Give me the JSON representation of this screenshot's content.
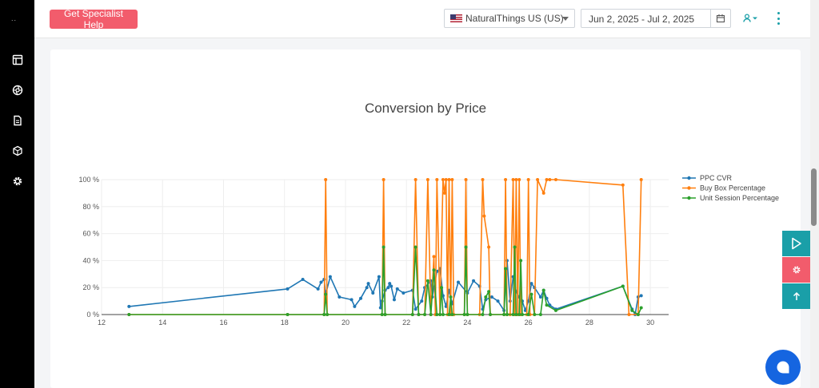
{
  "sidebar": {
    "brand": "..",
    "items": [
      {
        "icon": "layout-icon"
      },
      {
        "icon": "aperture-icon"
      },
      {
        "icon": "document-icon"
      },
      {
        "icon": "box-icon"
      },
      {
        "icon": "gear-icon"
      }
    ]
  },
  "header": {
    "help_button": "Get Specialist Help",
    "store": "NaturalThings US (US)",
    "date_range": "Jun 2, 2025 - Jul 2, 2025"
  },
  "colors": {
    "primary": "#f25c6c",
    "accent": "#1a9fa8",
    "ppc": "#1f77b4",
    "buybox": "#ff7f0e",
    "unit": "#2ca02c",
    "chat": "#1565e0"
  },
  "chart_data": {
    "type": "line",
    "title": "Conversion by Price",
    "xlim": [
      12,
      30.6
    ],
    "ylim": [
      0,
      100
    ],
    "x_ticks": [
      12,
      14,
      16,
      18,
      20,
      22,
      24,
      26,
      28,
      30
    ],
    "y_ticks": [
      0,
      20,
      40,
      60,
      80,
      100
    ],
    "y_tick_labels": [
      "0 %",
      "20 %",
      "40 %",
      "60 %",
      "80 %",
      "100 %"
    ],
    "legend_position": "right",
    "series": [
      {
        "name": "PPC CVR",
        "color": "#1f77b4",
        "points": [
          [
            12.9,
            6
          ],
          [
            18.1,
            19
          ],
          [
            18.6,
            26
          ],
          [
            19.1,
            19
          ],
          [
            19.2,
            24
          ],
          [
            19.3,
            26
          ],
          [
            19.35,
            15
          ],
          [
            19.5,
            28
          ],
          [
            19.8,
            13
          ],
          [
            20.2,
            11
          ],
          [
            20.3,
            6
          ],
          [
            20.5,
            12
          ],
          [
            20.7,
            20
          ],
          [
            20.75,
            23
          ],
          [
            20.9,
            16
          ],
          [
            21.1,
            28
          ],
          [
            21.15,
            5
          ],
          [
            21.2,
            10
          ],
          [
            21.3,
            18
          ],
          [
            21.4,
            20
          ],
          [
            21.45,
            23
          ],
          [
            21.5,
            21
          ],
          [
            21.6,
            11
          ],
          [
            21.7,
            19
          ],
          [
            21.9,
            16
          ],
          [
            22.2,
            18
          ],
          [
            22.3,
            4
          ],
          [
            22.5,
            10
          ],
          [
            22.6,
            20
          ],
          [
            22.8,
            25
          ],
          [
            22.85,
            13
          ],
          [
            22.9,
            20
          ],
          [
            23.0,
            32
          ],
          [
            23.1,
            34
          ],
          [
            23.2,
            14
          ],
          [
            23.3,
            6
          ],
          [
            23.4,
            18
          ],
          [
            23.5,
            8
          ],
          [
            23.7,
            24
          ],
          [
            24.0,
            16
          ],
          [
            24.2,
            25
          ],
          [
            24.4,
            21
          ],
          [
            24.5,
            4
          ],
          [
            24.6,
            11
          ],
          [
            24.8,
            13
          ],
          [
            25.0,
            10
          ],
          [
            25.2,
            3
          ],
          [
            25.3,
            40
          ],
          [
            25.4,
            10
          ],
          [
            25.5,
            28
          ],
          [
            25.6,
            17
          ],
          [
            25.7,
            13
          ],
          [
            25.8,
            10
          ],
          [
            25.9,
            3
          ],
          [
            26.0,
            10
          ],
          [
            26.1,
            23
          ],
          [
            26.2,
            20
          ],
          [
            26.4,
            13
          ],
          [
            26.5,
            18
          ],
          [
            26.6,
            12
          ],
          [
            26.7,
            7
          ],
          [
            26.9,
            4
          ],
          [
            29.1,
            21
          ],
          [
            29.4,
            4
          ],
          [
            29.5,
            0
          ],
          [
            29.6,
            13
          ],
          [
            29.7,
            14
          ]
        ]
      },
      {
        "name": "Buy Box Percentage",
        "color": "#ff7f0e",
        "points": [
          [
            12.9,
            0
          ],
          [
            18.1,
            0
          ],
          [
            19.3,
            0
          ],
          [
            19.35,
            100
          ],
          [
            19.4,
            0
          ],
          [
            21.2,
            0
          ],
          [
            21.25,
            100
          ],
          [
            21.3,
            0
          ],
          [
            22.2,
            0
          ],
          [
            22.3,
            100
          ],
          [
            22.4,
            0
          ],
          [
            22.6,
            0
          ],
          [
            22.7,
            100
          ],
          [
            22.8,
            0
          ],
          [
            22.9,
            43
          ],
          [
            22.95,
            0
          ],
          [
            23.0,
            100
          ],
          [
            23.1,
            0
          ],
          [
            23.2,
            100
          ],
          [
            23.25,
            90
          ],
          [
            23.3,
            100
          ],
          [
            23.35,
            0
          ],
          [
            23.4,
            100
          ],
          [
            23.45,
            0
          ],
          [
            23.5,
            100
          ],
          [
            23.55,
            0
          ],
          [
            23.9,
            0
          ],
          [
            23.95,
            100
          ],
          [
            24.0,
            0
          ],
          [
            24.4,
            0
          ],
          [
            24.5,
            100
          ],
          [
            24.55,
            73
          ],
          [
            24.7,
            50
          ],
          [
            24.75,
            0
          ],
          [
            25.2,
            0
          ],
          [
            25.25,
            100
          ],
          [
            25.3,
            0
          ],
          [
            25.4,
            0
          ],
          [
            25.5,
            100
          ],
          [
            25.55,
            0
          ],
          [
            25.6,
            100
          ],
          [
            25.65,
            0
          ],
          [
            25.7,
            100
          ],
          [
            25.75,
            0
          ],
          [
            25.95,
            0
          ],
          [
            26.0,
            100
          ],
          [
            26.05,
            0
          ],
          [
            26.2,
            0
          ],
          [
            26.3,
            100
          ],
          [
            26.5,
            90
          ],
          [
            26.6,
            100
          ],
          [
            26.7,
            100
          ],
          [
            26.9,
            100
          ],
          [
            29.1,
            96
          ],
          [
            29.3,
            0
          ],
          [
            29.6,
            0
          ],
          [
            29.7,
            100
          ]
        ]
      },
      {
        "name": "Unit Session Percentage",
        "color": "#2ca02c",
        "points": [
          [
            12.9,
            0
          ],
          [
            18.1,
            0
          ],
          [
            19.3,
            0
          ],
          [
            19.35,
            15
          ],
          [
            19.4,
            0
          ],
          [
            21.2,
            0
          ],
          [
            21.25,
            50
          ],
          [
            21.3,
            0
          ],
          [
            22.2,
            0
          ],
          [
            22.3,
            50
          ],
          [
            22.4,
            0
          ],
          [
            22.6,
            0
          ],
          [
            22.7,
            25
          ],
          [
            22.8,
            0
          ],
          [
            22.9,
            33
          ],
          [
            23.0,
            0
          ],
          [
            23.1,
            0
          ],
          [
            23.15,
            20
          ],
          [
            23.2,
            0
          ],
          [
            23.4,
            0
          ],
          [
            23.45,
            13
          ],
          [
            23.5,
            0
          ],
          [
            23.9,
            0
          ],
          [
            23.95,
            50
          ],
          [
            24.0,
            0
          ],
          [
            24.5,
            0
          ],
          [
            24.6,
            13
          ],
          [
            24.7,
            17
          ],
          [
            24.75,
            0
          ],
          [
            25.2,
            0
          ],
          [
            25.25,
            34
          ],
          [
            25.3,
            0
          ],
          [
            25.5,
            0
          ],
          [
            25.55,
            50
          ],
          [
            25.6,
            0
          ],
          [
            25.7,
            0
          ],
          [
            25.75,
            40
          ],
          [
            25.8,
            0
          ],
          [
            26.0,
            0
          ],
          [
            26.1,
            15
          ],
          [
            26.2,
            0
          ],
          [
            26.4,
            0
          ],
          [
            26.5,
            18
          ],
          [
            26.6,
            7
          ],
          [
            26.9,
            3
          ],
          [
            29.1,
            21
          ],
          [
            29.4,
            3
          ],
          [
            29.6,
            0
          ],
          [
            29.7,
            5
          ]
        ]
      }
    ]
  }
}
